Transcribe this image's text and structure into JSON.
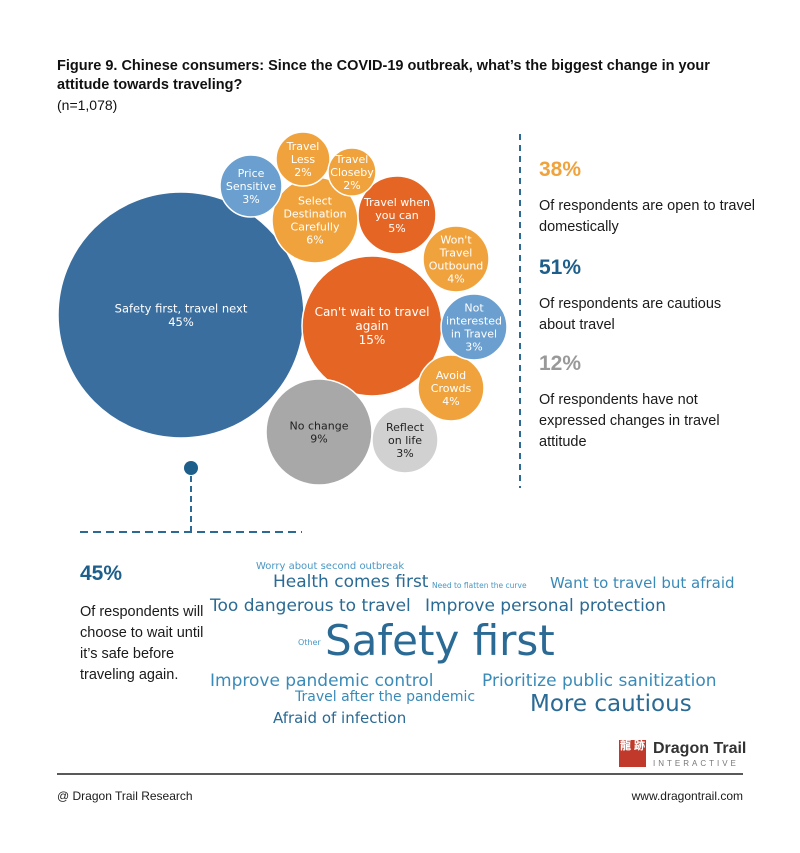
{
  "title": "Figure 9. Chinese consumers: Since the COVID-19 outbreak, what’s the biggest change in your attitude towards traveling?",
  "subtitle": "(n=1,078)",
  "colors": {
    "dark_blue": "#3a6e9f",
    "light_blue": "#6a9fcf",
    "orange": "#e56624",
    "light_orange": "#f0a33c",
    "gray": "#a8a8a8",
    "light_gray": "#d1d1d1",
    "accent_blue": "#1d5f8a",
    "accent_orange": "#f0a33c",
    "accent_gray": "#999999"
  },
  "chart_data": [
    {
      "type": "bubble",
      "unit": "%",
      "bubbles": [
        {
          "lines": [
            "Safety first, travel next",
            "45%"
          ],
          "value": 45,
          "group": "cautious"
        },
        {
          "lines": [
            "Can't wait to travel",
            "again",
            "15%"
          ],
          "value": 15,
          "group": "open"
        },
        {
          "lines": [
            "No change",
            "9%"
          ],
          "value": 9,
          "group": "none"
        },
        {
          "lines": [
            "Select",
            "Destination",
            "Carefully",
            "6%"
          ],
          "value": 6,
          "group": "open-light"
        },
        {
          "lines": [
            "Travel when",
            "you can",
            "5%"
          ],
          "value": 5,
          "group": "open"
        },
        {
          "lines": [
            "Won't",
            "Travel",
            "Outbound",
            "4%"
          ],
          "value": 4,
          "group": "open-light"
        },
        {
          "lines": [
            "Avoid",
            "Crowds",
            "4%"
          ],
          "value": 4,
          "group": "open-light"
        },
        {
          "lines": [
            "Price",
            "Sensitive",
            "3%"
          ],
          "value": 3,
          "group": "cautious-light"
        },
        {
          "lines": [
            "Not",
            "interested",
            "in Travel",
            "3%"
          ],
          "value": 3,
          "group": "cautious-light"
        },
        {
          "lines": [
            "Reflect",
            "on life",
            "3%"
          ],
          "value": 3,
          "group": "none-light"
        },
        {
          "lines": [
            "Travel",
            "Less",
            "2%"
          ],
          "value": 2,
          "group": "open-light"
        },
        {
          "lines": [
            "Travel",
            "Closeby",
            "2%"
          ],
          "value": 2,
          "group": "open-light"
        }
      ]
    },
    {
      "type": "wordcloud",
      "words": [
        {
          "text": "Safety first",
          "weight": 10
        },
        {
          "text": "More cautious",
          "weight": 5
        },
        {
          "text": "Too dangerous to travel",
          "weight": 4
        },
        {
          "text": "Improve personal protection",
          "weight": 4
        },
        {
          "text": "Health comes first",
          "weight": 4
        },
        {
          "text": "Improve pandemic control",
          "weight": 4
        },
        {
          "text": "Prioritize public sanitization",
          "weight": 4
        },
        {
          "text": "Want to travel but afraid",
          "weight": 3.5
        },
        {
          "text": "Afraid of infection",
          "weight": 3.5
        },
        {
          "text": "Travel after the pandemic",
          "weight": 3
        },
        {
          "text": "Worry about second outbreak",
          "weight": 2
        },
        {
          "text": "Need to flatten the curve",
          "weight": 1
        },
        {
          "text": "Other",
          "weight": 1
        }
      ]
    }
  ],
  "stats": [
    {
      "value": "38%",
      "desc": "Of respondents are open to travel domestically"
    },
    {
      "value": "51%",
      "desc": "Of respondents are cautious about travel"
    },
    {
      "value": "12%",
      "desc": "Of respondents have not expressed changes in travel attitude"
    }
  ],
  "highlight": {
    "value": "45%",
    "desc": "Of respondents will choose to wait until it’s safe before traveling again."
  },
  "footer": {
    "left": "@ Dragon Trail Research",
    "right": "www.dragontrail.com"
  },
  "logo": {
    "mark": "龍 跡",
    "name": "Dragon Trail",
    "sub": "INTERACTIVE"
  }
}
